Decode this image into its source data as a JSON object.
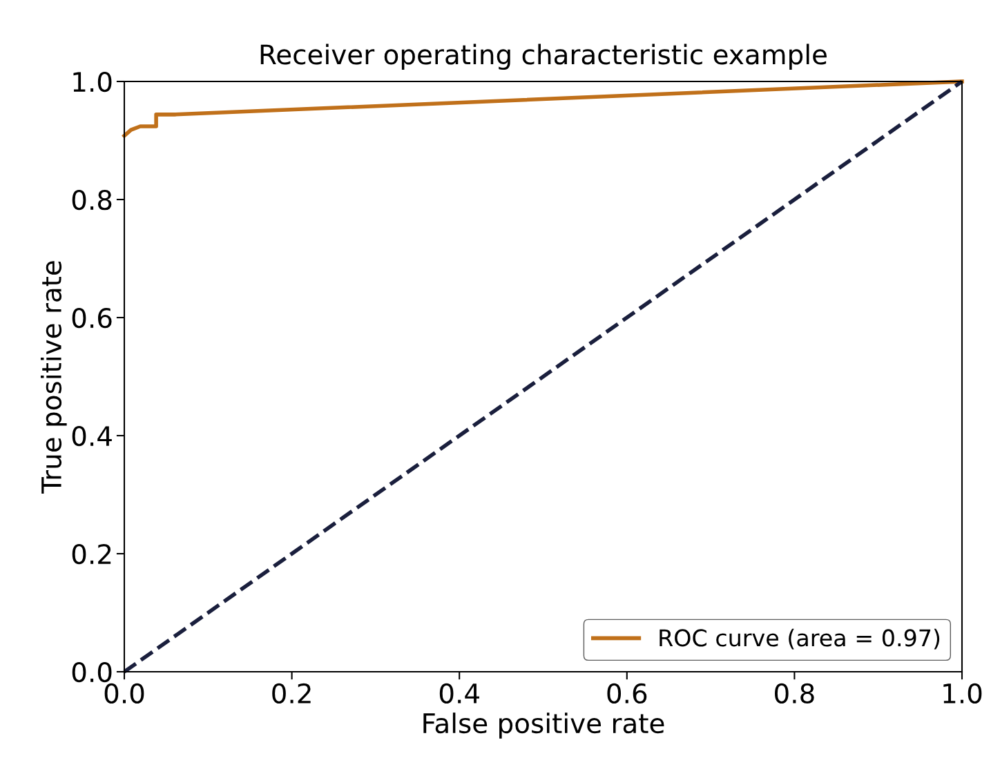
{
  "chart_data": {
    "type": "line",
    "title": "Receiver operating characteristic example",
    "xlabel": "False positive rate",
    "ylabel": "True positive rate",
    "series": [
      {
        "name": "ROC curve (area = 0.97)",
        "color": "#c0701a",
        "x": [
          0,
          0.008,
          0.019,
          0.038,
          0.038,
          0.06,
          1.0
        ],
        "values": [
          0.908,
          0.918,
          0.924,
          0.924,
          0.944,
          0.944,
          1.0
        ],
        "line_style": "solid"
      },
      {
        "color": "#1a1f3d",
        "x": [
          0,
          1.0
        ],
        "values": [
          0,
          1.0
        ],
        "line_style": "dashed"
      }
    ],
    "xlim": [
      0,
      1.0
    ],
    "ylim": [
      0,
      1.0
    ],
    "xticks": [
      {
        "value": 0,
        "label": "0.0"
      },
      0.2,
      0.4,
      0.6,
      0.8,
      {
        "value": 1,
        "label": "1.0"
      }
    ],
    "yticks": [
      {
        "value": 0,
        "label": "0.0"
      },
      0.2,
      0.4,
      0.6,
      0.8,
      {
        "value": 1,
        "label": "1.0"
      }
    ],
    "grid": false,
    "legend": "bottom right"
  }
}
